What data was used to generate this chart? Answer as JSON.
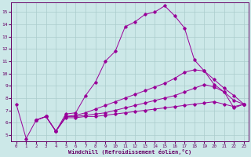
{
  "xlabel": "Windchill (Refroidissement éolien,°C)",
  "bg_color": "#cce8e8",
  "line_color": "#990099",
  "grid_color": "#aacccc",
  "xlim": [
    -0.5,
    23.5
  ],
  "ylim": [
    4.5,
    15.8
  ],
  "yticks": [
    5,
    6,
    7,
    8,
    9,
    10,
    11,
    12,
    13,
    14,
    15
  ],
  "xticks": [
    0,
    1,
    2,
    3,
    4,
    5,
    6,
    7,
    8,
    9,
    10,
    11,
    12,
    13,
    14,
    15,
    16,
    17,
    18,
    19,
    20,
    21,
    22,
    23
  ],
  "line1_x": [
    0,
    1,
    2,
    3,
    4,
    5,
    6,
    7,
    8,
    9,
    10,
    11,
    12,
    13,
    14,
    15,
    16,
    17,
    18,
    19,
    20,
    21,
    22,
    23
  ],
  "line1_y": [
    7.5,
    4.7,
    6.2,
    6.5,
    5.3,
    6.7,
    6.8,
    8.2,
    9.3,
    11.0,
    11.8,
    13.8,
    14.2,
    14.8,
    15.0,
    15.5,
    14.7,
    13.7,
    11.1,
    10.2,
    9.1,
    8.5,
    7.2,
    7.5
  ],
  "line2_x": [
    2,
    3,
    4,
    5,
    6,
    7,
    8,
    9,
    10,
    11,
    12,
    13,
    14,
    15,
    16,
    17,
    18,
    19,
    20,
    21,
    22,
    23
  ],
  "line2_y": [
    6.2,
    6.5,
    5.3,
    6.5,
    6.6,
    6.8,
    7.1,
    7.4,
    7.7,
    8.0,
    8.3,
    8.6,
    8.9,
    9.2,
    9.6,
    10.1,
    10.3,
    10.2,
    9.5,
    8.8,
    8.2,
    7.5
  ],
  "line3_x": [
    2,
    3,
    4,
    5,
    6,
    7,
    8,
    9,
    10,
    11,
    12,
    13,
    14,
    15,
    16,
    17,
    18,
    19,
    20,
    21,
    22,
    23
  ],
  "line3_y": [
    6.2,
    6.5,
    5.3,
    6.5,
    6.5,
    6.6,
    6.7,
    6.8,
    7.0,
    7.2,
    7.4,
    7.6,
    7.8,
    8.0,
    8.2,
    8.5,
    8.8,
    9.1,
    8.9,
    8.5,
    7.8,
    7.5
  ],
  "line4_x": [
    2,
    3,
    4,
    5,
    6,
    7,
    8,
    9,
    10,
    11,
    12,
    13,
    14,
    15,
    16,
    17,
    18,
    19,
    20,
    21,
    22,
    23
  ],
  "line4_y": [
    6.2,
    6.5,
    5.3,
    6.4,
    6.4,
    6.5,
    6.5,
    6.6,
    6.7,
    6.8,
    6.9,
    7.0,
    7.1,
    7.2,
    7.3,
    7.4,
    7.5,
    7.6,
    7.7,
    7.5,
    7.3,
    7.5
  ]
}
